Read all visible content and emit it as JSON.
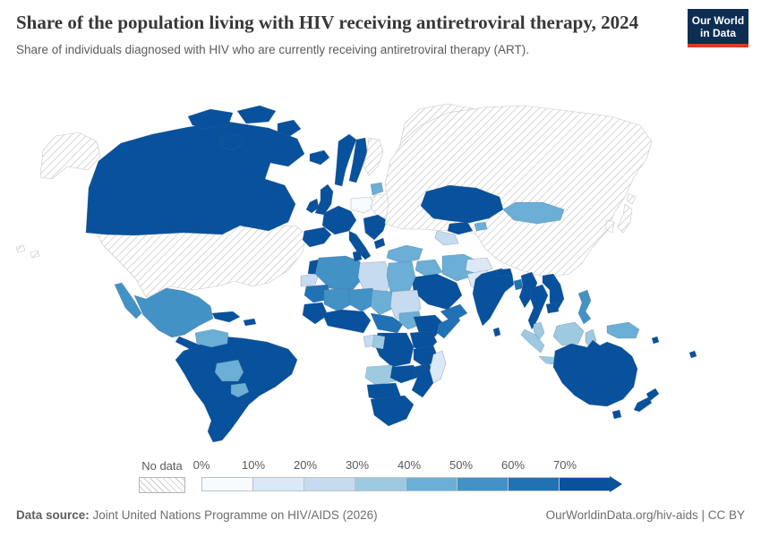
{
  "header": {
    "title": "Share of the population living with HIV receiving antiretroviral therapy, 2024",
    "subtitle": "Share of individuals diagnosed with HIV who are currently receiving antiretroviral therapy (ART).",
    "logo": {
      "line1": "Our World",
      "line2": "in Data",
      "bg_color": "#0d2e52",
      "accent_color": "#d93a2b"
    }
  },
  "legend": {
    "no_data_label": "No data"
  },
  "footer": {
    "source_label": "Data source:",
    "source_text": " Joint United Nations Programme on HIV/AIDS (2026)",
    "right_text": "OurWorldinData.org/hiv-aids | CC BY"
  },
  "chart_data": {
    "type": "choropleth_map",
    "title": "Share of the population living with HIV receiving antiretroviral therapy",
    "year": "2024",
    "bin_edges": [
      "0%",
      "10%",
      "20%",
      "30%",
      "40%",
      "50%",
      "60%",
      "70%"
    ],
    "colors": [
      "#f7fbff",
      "#dbe9f6",
      "#c6dbef",
      "#9ecae1",
      "#6baed6",
      "#4292c6",
      "#2171b5",
      "#08519c"
    ],
    "no_data_style": "gray diagonal hatching",
    "stroke_color": "rgba(80,105,135,0.45)",
    "no_data_stroke_color": "#c6c6c6",
    "regions": [
      {
        "id": "greenland",
        "name": "Greenland",
        "bin": "no_data"
      },
      {
        "id": "alaska",
        "name": "Alaska (United States)",
        "bin": "no_data"
      },
      {
        "id": "usa",
        "name": "United States",
        "bin": "no_data"
      },
      {
        "id": "hawaii",
        "name": "Hawaii (United States)",
        "bin": "no_data"
      },
      {
        "id": "canada",
        "name": "Canada",
        "bin": 7
      },
      {
        "id": "canadian-arctic",
        "name": "Canadian Arctic Islands",
        "bin": 7
      },
      {
        "id": "mexico",
        "name": "Mexico",
        "bin": 5
      },
      {
        "id": "cuba",
        "name": "Cuba",
        "bin": 7
      },
      {
        "id": "hispaniola",
        "name": "Haiti & Dominican Republic",
        "bin": 7
      },
      {
        "id": "central-america",
        "name": "Central America",
        "bin": 7
      },
      {
        "id": "south-america",
        "name": "South America (Brazil, Argentina, Chile, Peru, Colombia)",
        "bin": 7
      },
      {
        "id": "venezuela",
        "name": "Venezuela",
        "bin": 4
      },
      {
        "id": "bolivia",
        "name": "Bolivia",
        "bin": 4
      },
      {
        "id": "paraguay",
        "name": "Paraguay",
        "bin": 4
      },
      {
        "id": "iceland",
        "name": "Iceland",
        "bin": 7
      },
      {
        "id": "norway",
        "name": "Norway",
        "bin": 7
      },
      {
        "id": "sweden",
        "name": "Sweden",
        "bin": 7
      },
      {
        "id": "finland",
        "name": "Finland",
        "bin": "no_data"
      },
      {
        "id": "uk",
        "name": "United Kingdom",
        "bin": 7
      },
      {
        "id": "ireland",
        "name": "Ireland",
        "bin": 7
      },
      {
        "id": "baltics",
        "name": "Baltic states",
        "bin": 4
      },
      {
        "id": "central-europe",
        "name": "Poland & Central Europe",
        "bin": 0
      },
      {
        "id": "belarus-ukraine",
        "name": "Belarus & Ukraine",
        "bin": "no_data"
      },
      {
        "id": "west-europe",
        "name": "Western Europe (France, Germany)",
        "bin": 7
      },
      {
        "id": "iberia",
        "name": "Spain & Portugal",
        "bin": 7
      },
      {
        "id": "italy",
        "name": "Italy",
        "bin": 7
      },
      {
        "id": "balkans",
        "name": "Balkans & Romania",
        "bin": 7
      },
      {
        "id": "greece",
        "name": "Greece",
        "bin": 7
      },
      {
        "id": "russia-china",
        "name": "Russia & China",
        "bin": "no_data"
      },
      {
        "id": "kazakhstan",
        "name": "Kazakhstan",
        "bin": 7
      },
      {
        "id": "mongolia",
        "name": "Mongolia",
        "bin": 4
      },
      {
        "id": "uzbekistan",
        "name": "Uzbekistan",
        "bin": 7
      },
      {
        "id": "turkmenistan",
        "name": "Turkmenistan",
        "bin": 2
      },
      {
        "id": "kyrgyzstan",
        "name": "Kyrgyzstan",
        "bin": 4
      },
      {
        "id": "japan",
        "name": "Japan",
        "bin": "no_data"
      },
      {
        "id": "korea",
        "name": "South Korea",
        "bin": "no_data"
      },
      {
        "id": "turkey",
        "name": "Turkey",
        "bin": 4
      },
      {
        "id": "syria-iraq",
        "name": "Syria & Iraq",
        "bin": 4
      },
      {
        "id": "iran",
        "name": "Iran",
        "bin": 4
      },
      {
        "id": "afghanistan",
        "name": "Afghanistan",
        "bin": 1
      },
      {
        "id": "pakistan",
        "name": "Pakistan",
        "bin": 1
      },
      {
        "id": "saudi-arabia",
        "name": "Saudi Arabia",
        "bin": 7
      },
      {
        "id": "yemen-oman",
        "name": "Yemen & Oman",
        "bin": 6
      },
      {
        "id": "morocco",
        "name": "Morocco",
        "bin": 7
      },
      {
        "id": "western-sahara",
        "name": "Western Sahara",
        "bin": 2
      },
      {
        "id": "algeria",
        "name": "Algeria",
        "bin": 5
      },
      {
        "id": "tunisia",
        "name": "Tunisia",
        "bin": 7
      },
      {
        "id": "libya",
        "name": "Libya",
        "bin": 2
      },
      {
        "id": "egypt",
        "name": "Egypt",
        "bin": 4
      },
      {
        "id": "mauritania",
        "name": "Mauritania",
        "bin": 6
      },
      {
        "id": "mali",
        "name": "Mali",
        "bin": 5
      },
      {
        "id": "niger",
        "name": "Niger",
        "bin": 5
      },
      {
        "id": "chad",
        "name": "Chad",
        "bin": 4
      },
      {
        "id": "sudan",
        "name": "Sudan",
        "bin": 2
      },
      {
        "id": "senegal-guinea",
        "name": "Senegal & Guinea",
        "bin": 7
      },
      {
        "id": "gulf-of-guinea",
        "name": "Côte d'Ivoire, Ghana & Nigeria",
        "bin": 7
      },
      {
        "id": "cameroon-car",
        "name": "Cameroon & Central African Republic",
        "bin": 6
      },
      {
        "id": "south-sudan",
        "name": "South Sudan",
        "bin": 4
      },
      {
        "id": "ethiopia",
        "name": "Ethiopia",
        "bin": 7
      },
      {
        "id": "somalia",
        "name": "Somalia",
        "bin": 6
      },
      {
        "id": "drc",
        "name": "Democratic Republic of Congo",
        "bin": 7
      },
      {
        "id": "gabon",
        "name": "Gabon",
        "bin": 2
      },
      {
        "id": "congo",
        "name": "Congo",
        "bin": 3
      },
      {
        "id": "uganda-kenya",
        "name": "Uganda & Kenya",
        "bin": 7
      },
      {
        "id": "tanzania",
        "name": "Tanzania",
        "bin": 7
      },
      {
        "id": "angola",
        "name": "Angola",
        "bin": 3
      },
      {
        "id": "zambia",
        "name": "Zambia",
        "bin": 7
      },
      {
        "id": "zimbabwe-mozambique",
        "name": "Zimbabwe & Mozambique",
        "bin": 7
      },
      {
        "id": "namibia-botswana",
        "name": "Namibia & Botswana",
        "bin": 7
      },
      {
        "id": "south-africa",
        "name": "South Africa",
        "bin": 7
      },
      {
        "id": "madagascar",
        "name": "Madagascar",
        "bin": 1
      },
      {
        "id": "india",
        "name": "India",
        "bin": 7
      },
      {
        "id": "nepal",
        "name": "Nepal",
        "bin": 7
      },
      {
        "id": "sri-lanka",
        "name": "Sri Lanka",
        "bin": 7
      },
      {
        "id": "bangladesh",
        "name": "Bangladesh",
        "bin": 6
      },
      {
        "id": "myanmar",
        "name": "Myanmar",
        "bin": 7
      },
      {
        "id": "thailand",
        "name": "Thailand",
        "bin": 7
      },
      {
        "id": "vietnam-laos",
        "name": "Vietnam & Laos",
        "bin": 7
      },
      {
        "id": "cambodia",
        "name": "Cambodia",
        "bin": 7
      },
      {
        "id": "malay-peninsula",
        "name": "Peninsular Malaysia",
        "bin": 3
      },
      {
        "id": "sumatra",
        "name": "Sumatra (Indonesia)",
        "bin": 3
      },
      {
        "id": "borneo",
        "name": "Borneo",
        "bin": 3
      },
      {
        "id": "java",
        "name": "Java (Indonesia)",
        "bin": 3
      },
      {
        "id": "sulawesi",
        "name": "Sulawesi (Indonesia)",
        "bin": 3
      },
      {
        "id": "philippines",
        "name": "Philippines",
        "bin": 5
      },
      {
        "id": "png",
        "name": "Papua New Guinea",
        "bin": 4
      },
      {
        "id": "pacific-islands",
        "name": "Pacific Islands",
        "bin": 7
      },
      {
        "id": "australia",
        "name": "Australia",
        "bin": 7
      },
      {
        "id": "tasmania",
        "name": "Tasmania (Australia)",
        "bin": 7
      },
      {
        "id": "new-zealand",
        "name": "New Zealand",
        "bin": 7
      }
    ]
  }
}
